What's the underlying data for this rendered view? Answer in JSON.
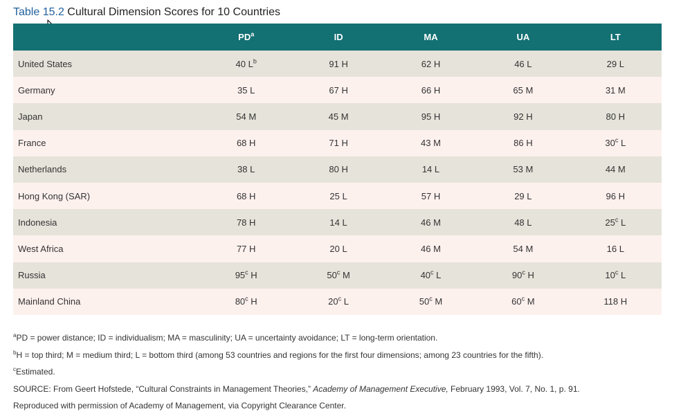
{
  "caption": {
    "number": "Table 15.2",
    "title": "Cultural Dimension Scores for 10 Countries"
  },
  "table": {
    "headers": [
      {
        "text": "",
        "sup": ""
      },
      {
        "text": "PD",
        "sup": "a"
      },
      {
        "text": "ID",
        "sup": ""
      },
      {
        "text": "MA",
        "sup": ""
      },
      {
        "text": "UA",
        "sup": ""
      },
      {
        "text": "LT",
        "sup": ""
      }
    ],
    "rows": [
      {
        "country": "United States",
        "cells": [
          {
            "v": "40",
            "s": "",
            "r": "L",
            "rs": "b"
          },
          {
            "v": "91",
            "s": "",
            "r": "H",
            "rs": ""
          },
          {
            "v": "62",
            "s": "",
            "r": "H",
            "rs": ""
          },
          {
            "v": "46",
            "s": "",
            "r": "L",
            "rs": ""
          },
          {
            "v": "29",
            "s": "",
            "r": "L",
            "rs": ""
          }
        ]
      },
      {
        "country": "Germany",
        "cells": [
          {
            "v": "35",
            "s": "",
            "r": "L",
            "rs": ""
          },
          {
            "v": "67",
            "s": "",
            "r": "H",
            "rs": ""
          },
          {
            "v": "66",
            "s": "",
            "r": "H",
            "rs": ""
          },
          {
            "v": "65",
            "s": "",
            "r": "M",
            "rs": ""
          },
          {
            "v": "31",
            "s": "",
            "r": "M",
            "rs": ""
          }
        ]
      },
      {
        "country": "Japan",
        "cells": [
          {
            "v": "54",
            "s": "",
            "r": "M",
            "rs": ""
          },
          {
            "v": "45",
            "s": "",
            "r": "M",
            "rs": ""
          },
          {
            "v": "95",
            "s": "",
            "r": "H",
            "rs": ""
          },
          {
            "v": "92",
            "s": "",
            "r": "H",
            "rs": ""
          },
          {
            "v": "80",
            "s": "",
            "r": "H",
            "rs": ""
          }
        ]
      },
      {
        "country": "France",
        "cells": [
          {
            "v": "68",
            "s": "",
            "r": "H",
            "rs": ""
          },
          {
            "v": "71",
            "s": "",
            "r": "H",
            "rs": ""
          },
          {
            "v": "43",
            "s": "",
            "r": "M",
            "rs": ""
          },
          {
            "v": "86",
            "s": "",
            "r": "H",
            "rs": ""
          },
          {
            "v": "30",
            "s": "c",
            "r": "L",
            "rs": ""
          }
        ]
      },
      {
        "country": "Netherlands",
        "cells": [
          {
            "v": "38",
            "s": "",
            "r": "L",
            "rs": ""
          },
          {
            "v": "80",
            "s": "",
            "r": "H",
            "rs": ""
          },
          {
            "v": "14",
            "s": "",
            "r": "L",
            "rs": ""
          },
          {
            "v": "53",
            "s": "",
            "r": "M",
            "rs": ""
          },
          {
            "v": "44",
            "s": "",
            "r": "M",
            "rs": ""
          }
        ]
      },
      {
        "country": "Hong Kong (SAR)",
        "cells": [
          {
            "v": "68",
            "s": "",
            "r": "H",
            "rs": ""
          },
          {
            "v": "25",
            "s": "",
            "r": "L",
            "rs": ""
          },
          {
            "v": "57",
            "s": "",
            "r": "H",
            "rs": ""
          },
          {
            "v": "29",
            "s": "",
            "r": "L",
            "rs": ""
          },
          {
            "v": "96",
            "s": "",
            "r": "H",
            "rs": ""
          }
        ]
      },
      {
        "country": "Indonesia",
        "cells": [
          {
            "v": "78",
            "s": "",
            "r": "H",
            "rs": ""
          },
          {
            "v": "14",
            "s": "",
            "r": "L",
            "rs": ""
          },
          {
            "v": "46",
            "s": "",
            "r": "M",
            "rs": ""
          },
          {
            "v": "48",
            "s": "",
            "r": "L",
            "rs": ""
          },
          {
            "v": "25",
            "s": "c",
            "r": "L",
            "rs": ""
          }
        ]
      },
      {
        "country": "West Africa",
        "cells": [
          {
            "v": "77",
            "s": "",
            "r": "H",
            "rs": ""
          },
          {
            "v": "20",
            "s": "",
            "r": "L",
            "rs": ""
          },
          {
            "v": "46",
            "s": "",
            "r": "M",
            "rs": ""
          },
          {
            "v": "54",
            "s": "",
            "r": "M",
            "rs": ""
          },
          {
            "v": "16",
            "s": "",
            "r": "L",
            "rs": ""
          }
        ]
      },
      {
        "country": "Russia",
        "cells": [
          {
            "v": "95",
            "s": "c",
            "r": "H",
            "rs": ""
          },
          {
            "v": "50",
            "s": "c",
            "r": "M",
            "rs": ""
          },
          {
            "v": "40",
            "s": "c",
            "r": "L",
            "rs": ""
          },
          {
            "v": "90",
            "s": "c",
            "r": "H",
            "rs": ""
          },
          {
            "v": "10",
            "s": "c",
            "r": "L",
            "rs": ""
          }
        ]
      },
      {
        "country": "Mainland China",
        "cells": [
          {
            "v": "80",
            "s": "c",
            "r": "H",
            "rs": ""
          },
          {
            "v": "20",
            "s": "c",
            "r": "L",
            "rs": ""
          },
          {
            "v": "50",
            "s": "c",
            "r": "M",
            "rs": ""
          },
          {
            "v": "60",
            "s": "c",
            "r": "M",
            "rs": ""
          },
          {
            "v": "118",
            "s": "",
            "r": "H",
            "rs": ""
          }
        ]
      }
    ]
  },
  "notes": {
    "a": {
      "sup": "a",
      "text": "PD = power distance; ID = individualism; MA = masculinity; UA = uncertainty avoidance; LT = long-term orientation."
    },
    "b": {
      "sup": "b",
      "text": "H = top third; M = medium third; L = bottom third (among 53 countries and regions for the first four dimensions; among 23 countries for the fifth)."
    },
    "c": {
      "sup": "c",
      "text": "Estimated."
    },
    "source": {
      "prefix": "SOURCE: From Geert Hofstede, “Cultural Constraints in Management Theories,” ",
      "journal": "Academy of Management Executive,",
      "suffix": " February 1993, Vol. 7, No. 1, p. 91."
    },
    "permission": "Reproduced with permission of Academy of Management, via Copyright Clearance Center."
  },
  "colors": {
    "header_bg": "#137073",
    "row_odd": "#e6e3da",
    "row_even": "#fdf1ee",
    "caption_number": "#1f5f9e"
  },
  "icons": {
    "cursor": "mouse-pointer-arrow-icon"
  }
}
